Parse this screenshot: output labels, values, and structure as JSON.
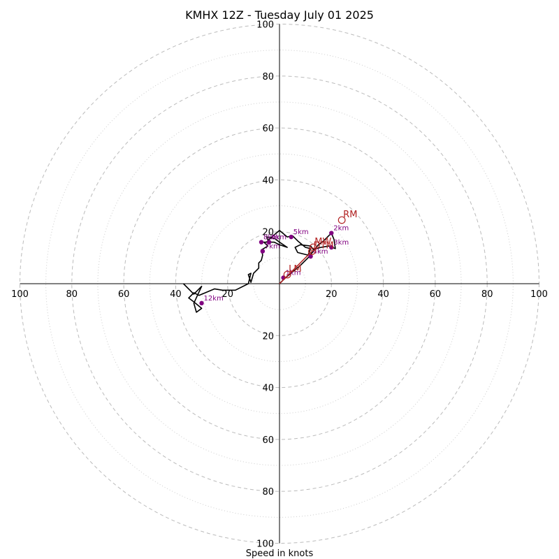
{
  "chart_data": {
    "type": "scatter",
    "title": "KMHX 12Z - Tuesday July 01 2025",
    "xlabel": "Speed in knots",
    "ylabel": "",
    "xlim": [
      -100,
      100
    ],
    "ylim": [
      -100,
      100
    ],
    "major_rings": [
      20,
      40,
      60,
      80,
      100
    ],
    "minor_rings": [
      10,
      30,
      50,
      70,
      90
    ],
    "tick_values": [
      20,
      40,
      60,
      80,
      100
    ],
    "grid": true,
    "hodograph_trace": {
      "name": "",
      "color": "#000000",
      "points": [
        [
          0,
          0
        ],
        [
          2,
          2
        ],
        [
          5,
          4.5
        ],
        [
          8,
          7
        ],
        [
          11,
          10
        ],
        [
          13,
          12.5
        ],
        [
          15,
          15
        ],
        [
          17,
          16.5
        ],
        [
          20,
          19.5
        ],
        [
          21,
          17
        ],
        [
          21.5,
          13.5
        ],
        [
          19,
          14.5
        ],
        [
          16,
          14
        ],
        [
          13,
          13.2
        ],
        [
          12,
          14.5
        ],
        [
          8,
          15
        ],
        [
          6,
          14
        ],
        [
          7,
          12
        ],
        [
          11,
          11
        ],
        [
          12,
          13.5
        ],
        [
          10,
          14
        ],
        [
          7,
          16.5
        ],
        [
          5,
          18.5
        ],
        [
          3,
          18
        ],
        [
          0,
          20.5
        ],
        [
          -3,
          18
        ],
        [
          -5,
          16
        ],
        [
          -2,
          16
        ],
        [
          0,
          15
        ],
        [
          3,
          14
        ],
        [
          0,
          16
        ],
        [
          -2,
          17.5
        ],
        [
          -5,
          18
        ],
        [
          -4,
          16
        ],
        [
          -6,
          16
        ],
        [
          -4.5,
          14.5
        ],
        [
          -7,
          13
        ],
        [
          -6.5,
          11
        ],
        [
          -7,
          9
        ],
        [
          -8,
          8
        ],
        [
          -8,
          6
        ],
        [
          -9,
          5
        ],
        [
          -10,
          4
        ],
        [
          -11,
          0.5
        ],
        [
          -12,
          3.5
        ],
        [
          -11,
          4
        ],
        [
          -12,
          0
        ],
        [
          -17,
          -2.5
        ],
        [
          -22,
          -2.5
        ],
        [
          -25,
          -2
        ],
        [
          -31,
          -4.5
        ],
        [
          -33,
          -3.5
        ],
        [
          -35,
          -5.5
        ],
        [
          -33,
          -7
        ],
        [
          -30,
          -9.5
        ],
        [
          -32,
          -11
        ],
        [
          -33,
          -7.5
        ],
        [
          -30,
          -1
        ],
        [
          -33,
          -4
        ],
        [
          -37,
          0
        ]
      ]
    },
    "height_markers": [
      {
        "label": "1km",
        "u": 1.5,
        "v": 2.3
      },
      {
        "label": "2km",
        "u": 20,
        "v": 19.5
      },
      {
        "label": "3km",
        "u": 20,
        "v": 14
      },
      {
        "label": "4km",
        "u": 12,
        "v": 10.5
      },
      {
        "label": "5km",
        "u": 4.5,
        "v": 18
      },
      {
        "label": "6km",
        "u": -4,
        "v": 16
      },
      {
        "label": "7km",
        "u": -6.5,
        "v": 12.5
      },
      {
        "label": "8km",
        "u": -7,
        "v": 16
      },
      {
        "label": "12km",
        "u": -30,
        "v": -7.5
      }
    ],
    "motion_markers": [
      {
        "label": "RM",
        "u": 24,
        "v": 24.5,
        "color": "#b22222"
      },
      {
        "label": "LM",
        "u": 3,
        "v": 3.5,
        "color": "#b22222"
      },
      {
        "label": "MW",
        "u": 13,
        "v": 14,
        "color": "#b22222"
      },
      {
        "label": "DTM",
        "u": 12.5,
        "v": 12.5,
        "color": "#b22222"
      }
    ],
    "motion_vector": {
      "to_u": 12.5,
      "to_v": 12.5,
      "color": "#b22222"
    },
    "colors": {
      "marker": "#800080",
      "motion": "#b22222",
      "ring": "#bbbbbb"
    }
  }
}
